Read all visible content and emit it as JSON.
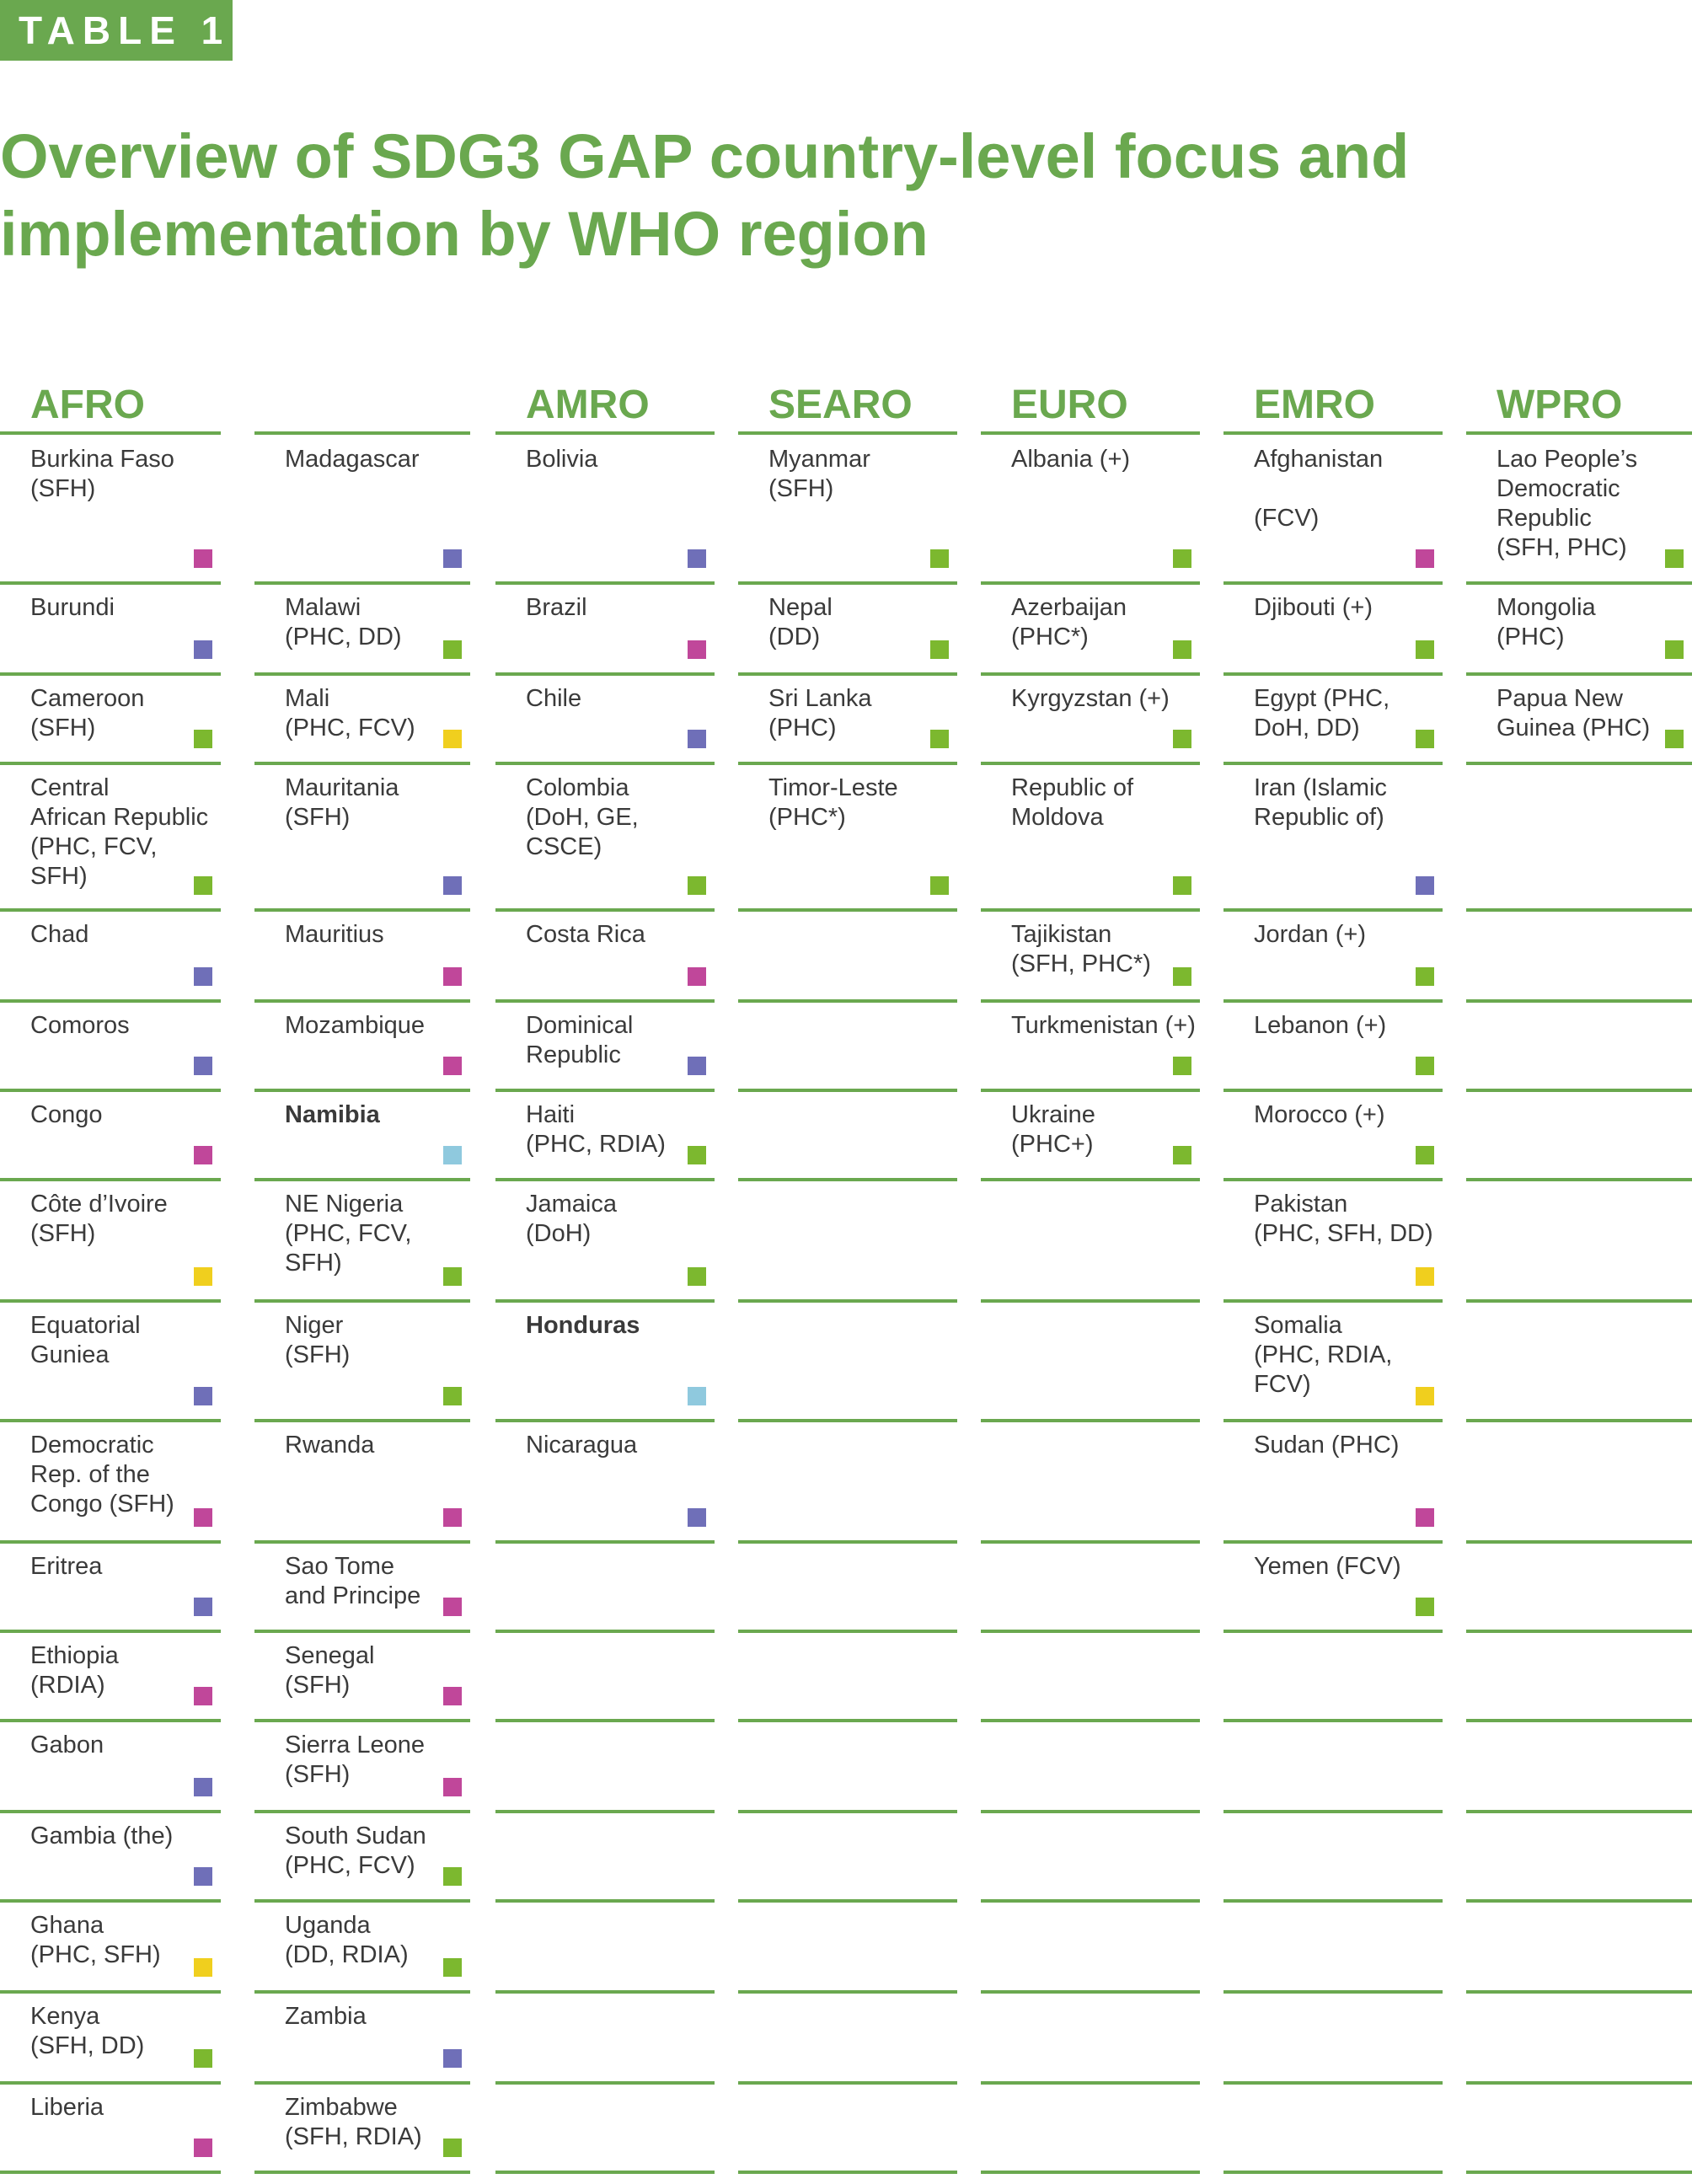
{
  "badge": "TABLE 1",
  "title": {
    "line1": "Overview of SDG3 GAP country-level focus and",
    "line2": "implementation by WHO region"
  },
  "colors": {
    "accent": "#6aa84f",
    "square_green": "#7cb82f",
    "square_purple": "#6f6fb8",
    "square_magenta": "#c0479a",
    "square_yellow": "#f0cf1e",
    "square_lightblue": "#8fc9de"
  },
  "regions": {
    "afro": "AFRO",
    "amro": "AMRO",
    "searo": "SEARO",
    "euro": "EURO",
    "emro": "EMRO",
    "wpro": "WPRO"
  },
  "afro_left": [
    {
      "name": "Burkina Faso\n(SFH)",
      "color": "magenta"
    },
    {
      "name": "Burundi",
      "color": "purple"
    },
    {
      "name": "Cameroon\n(SFH)",
      "color": "green"
    },
    {
      "name": "Central\nAfrican Republic\n(PHC, FCV,\nSFH)",
      "color": "green"
    },
    {
      "name": "Chad",
      "color": "purple"
    },
    {
      "name": "Comoros",
      "color": "purple"
    },
    {
      "name": "Congo",
      "color": "magenta"
    },
    {
      "name": "Côte d’Ivoire\n(SFH)",
      "color": "yellow"
    },
    {
      "name": "Equatorial\nGuniea",
      "color": "purple"
    },
    {
      "name": "Democratic\nRep. of the\nCongo (SFH)",
      "color": "magenta"
    },
    {
      "name": "Eritrea",
      "color": "purple"
    },
    {
      "name": "Ethiopia\n(RDIA)",
      "color": "magenta"
    },
    {
      "name": "Gabon",
      "color": "purple"
    },
    {
      "name": "Gambia (the)",
      "color": "purple"
    },
    {
      "name": "Ghana\n(PHC, SFH)",
      "color": "yellow"
    },
    {
      "name": "Kenya\n(SFH, DD)",
      "color": "green"
    },
    {
      "name": "Liberia",
      "color": "magenta"
    }
  ],
  "afro_right": [
    {
      "name": "Madagascar",
      "color": "purple"
    },
    {
      "name": "Malawi\n(PHC, DD)",
      "color": "green"
    },
    {
      "name": "Mali\n(PHC, FCV)",
      "color": "yellow"
    },
    {
      "name": "Mauritania\n(SFH)",
      "color": "purple"
    },
    {
      "name": "Mauritius",
      "color": "magenta"
    },
    {
      "name": "Mozambique",
      "color": "magenta"
    },
    {
      "name": "Namibia",
      "color": "lightblue",
      "bold": true
    },
    {
      "name": "NE Nigeria\n(PHC, FCV,\nSFH)",
      "color": "green"
    },
    {
      "name": "Niger\n(SFH)",
      "color": "green"
    },
    {
      "name": "Rwanda",
      "color": "magenta"
    },
    {
      "name": "Sao Tome\nand Principe",
      "color": "magenta"
    },
    {
      "name": "Senegal\n(SFH)",
      "color": "magenta"
    },
    {
      "name": "Sierra Leone\n(SFH)",
      "color": "magenta"
    },
    {
      "name": "South Sudan\n(PHC, FCV)",
      "color": "green"
    },
    {
      "name": "Uganda\n(DD, RDIA)",
      "color": "green"
    },
    {
      "name": "Zambia",
      "color": "purple"
    },
    {
      "name": "Zimbabwe\n(SFH, RDIA)",
      "color": "green"
    }
  ],
  "amro": [
    {
      "name": "Bolivia",
      "color": "purple"
    },
    {
      "name": "Brazil",
      "color": "magenta"
    },
    {
      "name": "Chile",
      "color": "purple"
    },
    {
      "name": "Colombia\n(DoH, GE,\nCSCE)",
      "color": "green"
    },
    {
      "name": "Costa Rica",
      "color": "magenta"
    },
    {
      "name": "Dominical\nRepublic",
      "color": "purple"
    },
    {
      "name": "Haiti\n(PHC, RDIA)",
      "color": "green"
    },
    {
      "name": "Jamaica\n(DoH)",
      "color": "green"
    },
    {
      "name": "Honduras",
      "color": "lightblue",
      "bold": true
    },
    {
      "name": "Nicaragua",
      "color": "purple"
    }
  ],
  "searo": [
    {
      "name": "Myanmar\n(SFH)",
      "color": "green"
    },
    {
      "name": "Nepal\n(DD)",
      "color": "green"
    },
    {
      "name": "Sri Lanka\n(PHC)",
      "color": "green"
    },
    {
      "name": "Timor-Leste\n(PHC*)",
      "color": "green"
    }
  ],
  "euro": [
    {
      "name": "Albania (+)",
      "color": "green"
    },
    {
      "name": "Azerbaijan\n(PHC*)",
      "color": "green"
    },
    {
      "name": "Kyrgyzstan (+)",
      "color": "green"
    },
    {
      "name": "Republic of\nMoldova",
      "color": "green"
    },
    {
      "name": "Tajikistan\n(SFH, PHC*)",
      "color": "green"
    },
    {
      "name": "Turkmenistan (+)",
      "color": "green"
    },
    {
      "name": "Ukraine\n(PHC+)",
      "color": "green"
    }
  ],
  "emro": [
    {
      "name": "Afghanistan\n\n(FCV)",
      "color": "magenta"
    },
    {
      "name": "Djibouti (+)",
      "color": "green"
    },
    {
      "name": "Egypt (PHC,\nDoH, DD)",
      "color": "green"
    },
    {
      "name": "Iran (Islamic\nRepublic of)",
      "color": "purple"
    },
    {
      "name": "Jordan (+)",
      "color": "green"
    },
    {
      "name": "Lebanon (+)",
      "color": "green"
    },
    {
      "name": "Morocco (+)",
      "color": "green"
    },
    {
      "name": "Pakistan\n(PHC, SFH, DD)",
      "color": "yellow"
    },
    {
      "name": "Somalia\n(PHC, RDIA,\nFCV)",
      "color": "yellow"
    },
    {
      "name": "Sudan (PHC)",
      "color": "magenta"
    },
    {
      "name": "Yemen (FCV)",
      "color": "green"
    }
  ],
  "wpro": [
    {
      "name": "Lao People’s\nDemocratic\nRepublic\n(SFH, PHC)",
      "color": "green"
    },
    {
      "name": "Mongolia\n(PHC)",
      "color": "green"
    },
    {
      "name": "Papua New\nGuinea (PHC)",
      "color": "green"
    }
  ]
}
